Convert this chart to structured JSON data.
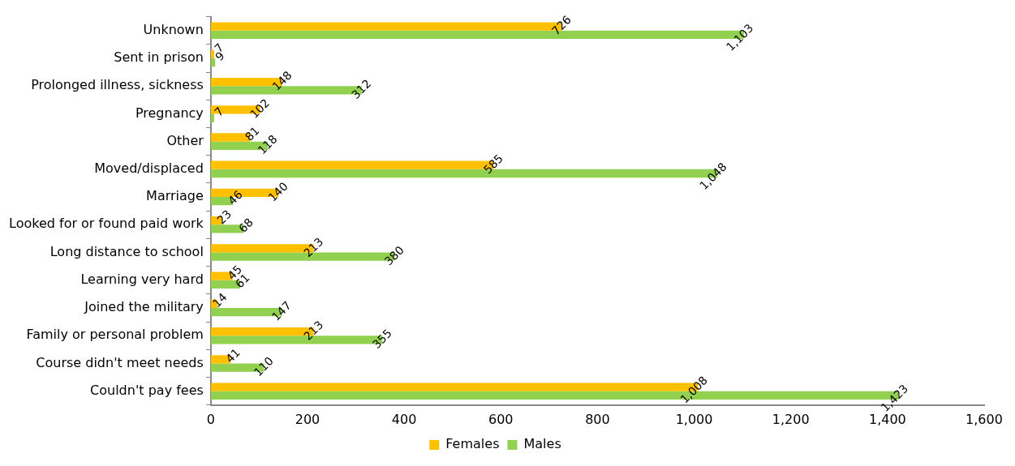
{
  "chart_data": {
    "type": "bar",
    "orientation": "horizontal",
    "categories": [
      "Unknown",
      "Sent in prison",
      "Prolonged illness, sickness",
      "Pregnancy",
      "Other",
      "Moved/displaced",
      "Marriage",
      "Looked for or found paid work",
      "Long distance to school",
      "Learning very hard",
      "Joined the military",
      "Family or personal problem",
      "Course didn't meet needs",
      "Couldn't pay fees"
    ],
    "series": [
      {
        "name": "Females",
        "color": "#ffc000",
        "values": [
          726,
          7,
          148,
          102,
          81,
          585,
          140,
          23,
          213,
          45,
          14,
          213,
          41,
          1008
        ],
        "value_labels": [
          "726",
          "7",
          "148",
          "102",
          "81",
          "585",
          "140",
          "23",
          "213",
          "45",
          "14",
          "213",
          "41",
          "1,008"
        ]
      },
      {
        "name": "Males",
        "color": "#92d050",
        "values": [
          1103,
          9,
          312,
          7,
          118,
          1048,
          46,
          68,
          380,
          61,
          147,
          355,
          110,
          1423
        ],
        "value_labels": [
          "1,103",
          "9",
          "312",
          "7",
          "118",
          "1,048",
          "46",
          "68",
          "380",
          "61",
          "147",
          "355",
          "110",
          "1,423"
        ]
      }
    ],
    "xlim": [
      0,
      1600
    ],
    "xticks": [
      0,
      {
        "value": 200,
        "label": "200"
      },
      {
        "value": 400,
        "label": "400"
      },
      {
        "value": 600,
        "label": "600"
      },
      {
        "value": 800,
        "label": "800"
      },
      {
        "value": 1000,
        "label": "1,000"
      },
      {
        "value": 1200,
        "label": "1,200"
      },
      {
        "value": 1400,
        "label": "1,400"
      },
      {
        "value": 1600,
        "label": "1,600"
      }
    ],
    "legend": "bottom",
    "grid": false
  }
}
